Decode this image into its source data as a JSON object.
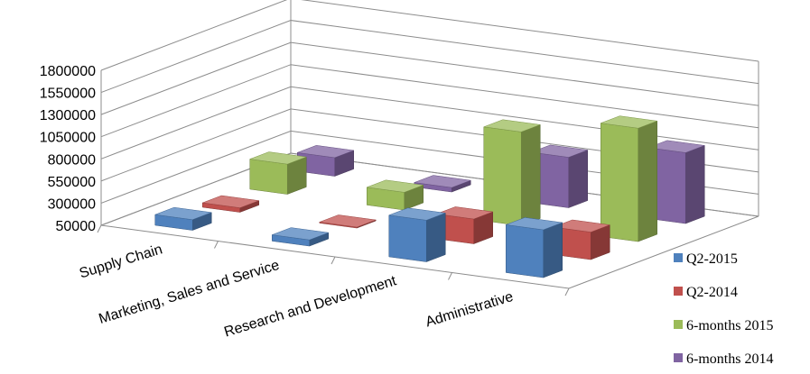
{
  "chart_data": {
    "type": "bar",
    "categories": [
      "Supply Chain",
      "Marketing, Sales and Service",
      "Research and Development",
      "Administrative"
    ],
    "series": [
      {
        "name": "Q2-2015",
        "values": [
          170000,
          120000,
          520000,
          590000
        ],
        "color": "#4f81bd"
      },
      {
        "name": "Q2-2014",
        "values": [
          100000,
          50000,
          330000,
          360000
        ],
        "color": "#c0504d"
      },
      {
        "name": "6-months 2015",
        "values": [
          390000,
          250000,
          1110000,
          1330000
        ],
        "color": "#9bbb59"
      },
      {
        "name": "6-months 2014",
        "values": [
          260000,
          100000,
          620000,
          850000
        ],
        "color": "#8064a2"
      }
    ],
    "yticks": [
      "1800000",
      "1550000",
      "1300000",
      "1050000",
      "800000",
      "550000",
      "300000",
      "50000"
    ],
    "ylim": [
      50000,
      1800000
    ],
    "legend_position": "right",
    "grid": true
  }
}
